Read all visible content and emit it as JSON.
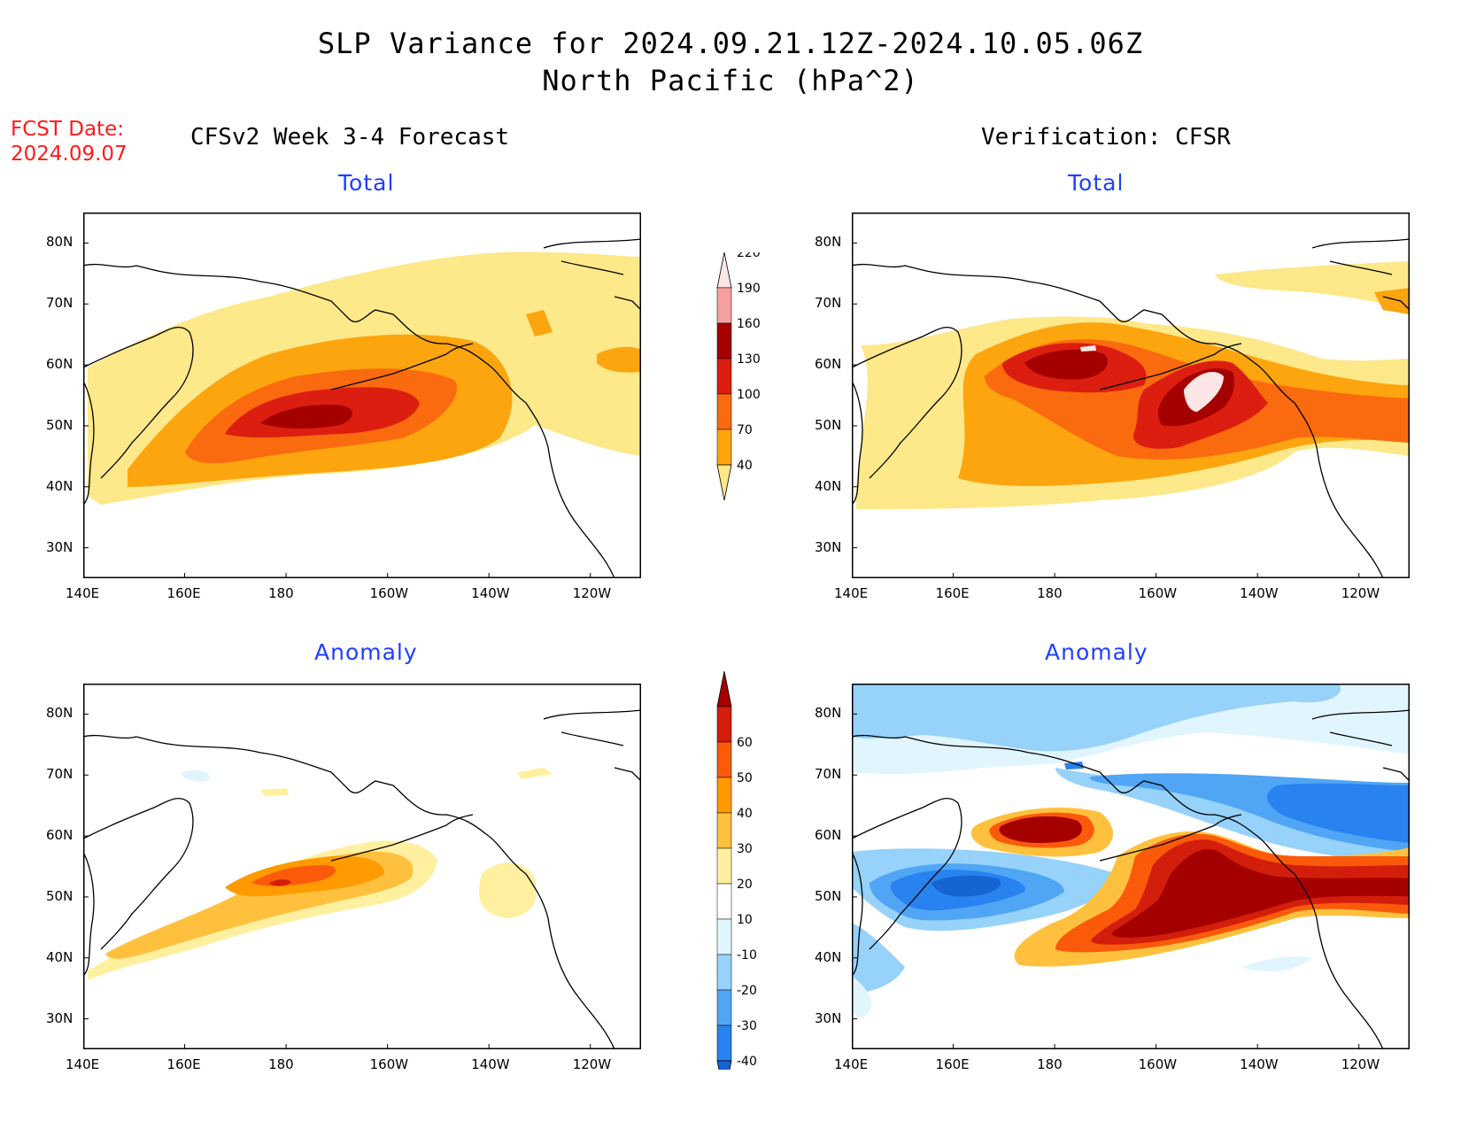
{
  "title": {
    "line1": "SLP Variance for 2024.09.21.12Z-2024.10.05.06Z",
    "line2": "North Pacific (hPa^2)"
  },
  "fcst_date": {
    "label": "FCST Date:",
    "value": "2024.09.07"
  },
  "headers": {
    "left": "CFSv2 Week 3-4 Forecast",
    "right": "Verification: CFSR"
  },
  "panels": [
    {
      "id": "fcst-total",
      "subtitle": "Total"
    },
    {
      "id": "verif-total",
      "subtitle": "Total"
    },
    {
      "id": "fcst-anomaly",
      "subtitle": "Anomaly"
    },
    {
      "id": "verif-anomaly",
      "subtitle": "Anomaly"
    }
  ],
  "lat_ticks": [
    "80N",
    "70N",
    "60N",
    "50N",
    "40N",
    "30N"
  ],
  "lon_ticks": [
    "140E",
    "160E",
    "180",
    "160W",
    "140W",
    "120W"
  ],
  "colorbar_total": {
    "levels": [
      "40",
      "70",
      "100",
      "130",
      "160",
      "190",
      "220"
    ],
    "colors": [
      "#fde88a",
      "#fca50e",
      "#fa6a0e",
      "#dc1e10",
      "#a50000",
      "#f4a0a0",
      "#fde6e6"
    ]
  },
  "colorbar_anomaly": {
    "levels": [
      "-40",
      "-30",
      "-20",
      "-10",
      "10",
      "20",
      "30",
      "40",
      "50",
      "60"
    ],
    "colors": [
      "#1464d2",
      "#2882f0",
      "#50a5f5",
      "#96d2fa",
      "#e1f5ff",
      "#ffffff",
      "#fff0a0",
      "#ffc13d",
      "#ff9a00",
      "#fa5a0a",
      "#d21e0a",
      "#a50000"
    ]
  }
}
